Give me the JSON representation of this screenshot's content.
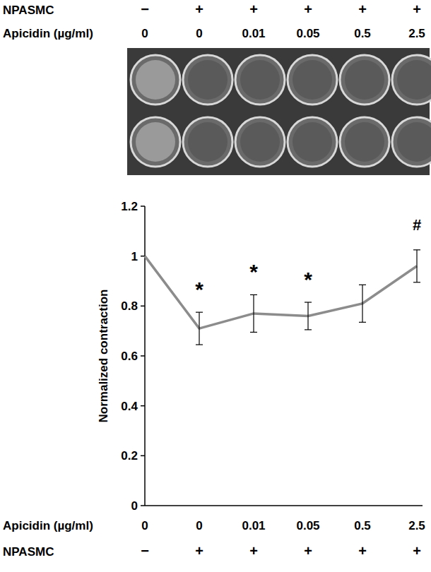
{
  "chart_data": {
    "type": "line",
    "x_label": "Apicidin (µg/ml)",
    "y_label": "Normalized contraction",
    "categories": [
      "0",
      "0",
      "0.01",
      "0.05",
      "0.5",
      "2.5"
    ],
    "group_rows": [
      {
        "label": "NPASMC",
        "values": [
          "−",
          "+",
          "+",
          "+",
          "+",
          "+"
        ]
      }
    ],
    "values": [
      1.0,
      0.71,
      0.77,
      0.76,
      0.81,
      0.96
    ],
    "errors": [
      0,
      0.065,
      0.075,
      0.055,
      0.075,
      0.065
    ],
    "annotations": [
      {
        "category_index": 1,
        "text": "*"
      },
      {
        "category_index": 2,
        "text": "*"
      },
      {
        "category_index": 3,
        "text": "*"
      },
      {
        "category_index": 5,
        "text": "#"
      }
    ],
    "color": "#8c8c8c",
    "marker": "none",
    "ylim": [
      0,
      1.2
    ],
    "yticks": [
      0,
      0.2,
      0.4,
      0.6,
      0.8,
      1,
      1.2
    ],
    "grid": false
  }
}
